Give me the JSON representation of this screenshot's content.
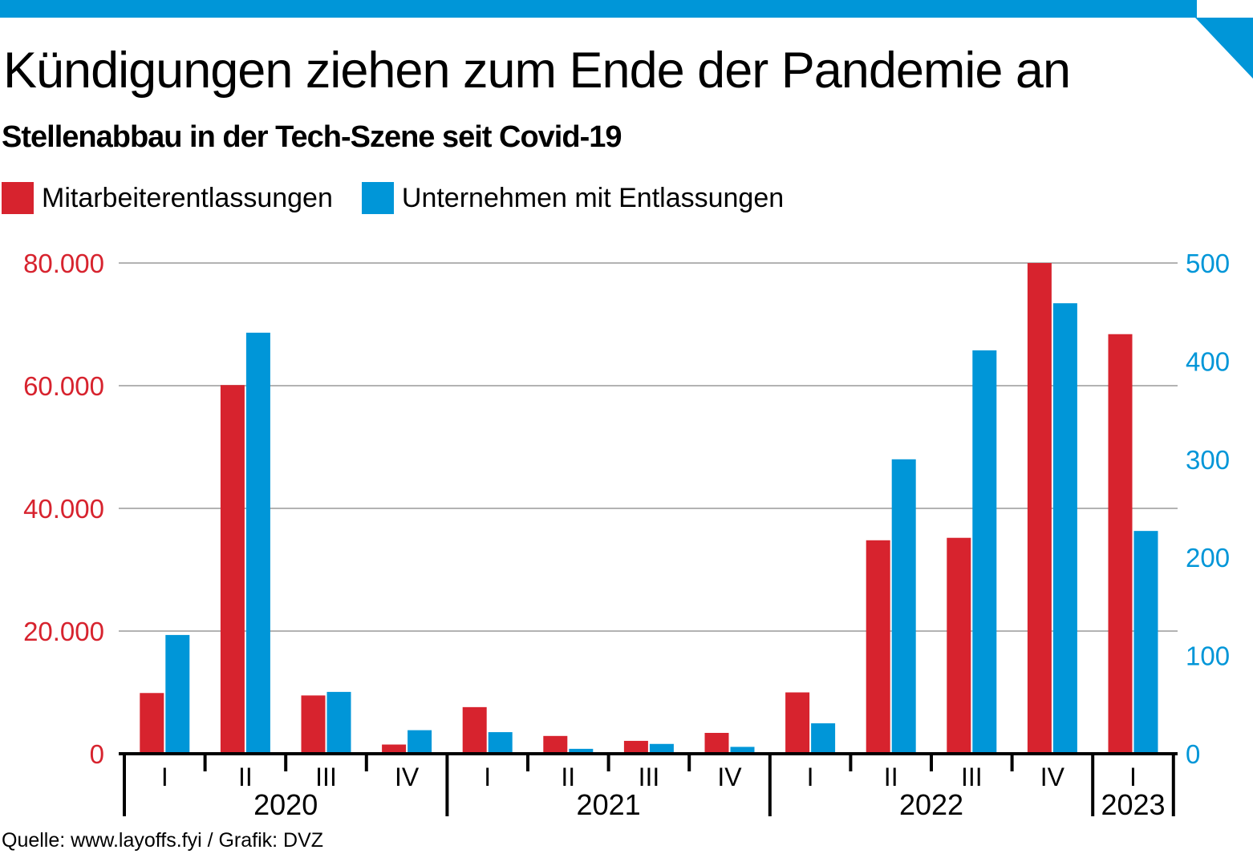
{
  "header": {
    "title": "Kündigungen ziehen zum Ende der Pandemie an",
    "subtitle": "Stellenabbau in der Tech-Szene seit Covid-19"
  },
  "legend": [
    {
      "label": "Mitarbeiterentlassungen",
      "color": "#d7232e"
    },
    {
      "label": "Unternehmen mit Entlassungen",
      "color": "#0096d8"
    }
  ],
  "footer": {
    "source": "Quelle: www.layoffs.fyi / Grafik: DVZ"
  },
  "colors": {
    "accent": "#0096d8",
    "red": "#d7232e",
    "grid": "#b3b3b3"
  },
  "chart_data": {
    "type": "bar",
    "categories": [
      "I",
      "II",
      "III",
      "IV",
      "I",
      "II",
      "III",
      "IV",
      "I",
      "II",
      "III",
      "IV",
      "I"
    ],
    "groups": [
      {
        "label": "2020",
        "count": 4
      },
      {
        "label": "2021",
        "count": 4
      },
      {
        "label": "2022",
        "count": 4
      },
      {
        "label": "2023",
        "count": 1
      }
    ],
    "series": [
      {
        "name": "Mitarbeiterentlassungen",
        "axis": "left",
        "color": "#d7232e",
        "values": [
          9900,
          60100,
          9500,
          1500,
          7600,
          2900,
          2100,
          3400,
          10000,
          34800,
          35200,
          80000,
          68400
        ]
      },
      {
        "name": "Unternehmen mit Entlassungen",
        "axis": "right",
        "color": "#0096d8",
        "values": [
          121,
          429,
          63,
          24,
          22,
          5,
          10,
          7,
          31,
          300,
          411,
          459,
          227
        ]
      }
    ],
    "y_left": {
      "ylim": [
        0,
        80000
      ],
      "ticks": [
        "0",
        "20.000",
        "40.000",
        "60.000",
        "80.000"
      ],
      "tick_values": [
        0,
        20000,
        40000,
        60000,
        80000
      ]
    },
    "y_right": {
      "ylim": [
        0,
        500
      ],
      "ticks": [
        "0",
        "100",
        "200",
        "300",
        "400",
        "500"
      ],
      "tick_values": [
        0,
        100,
        200,
        300,
        400,
        500
      ]
    },
    "grid": true,
    "legend_position": "top-left"
  }
}
